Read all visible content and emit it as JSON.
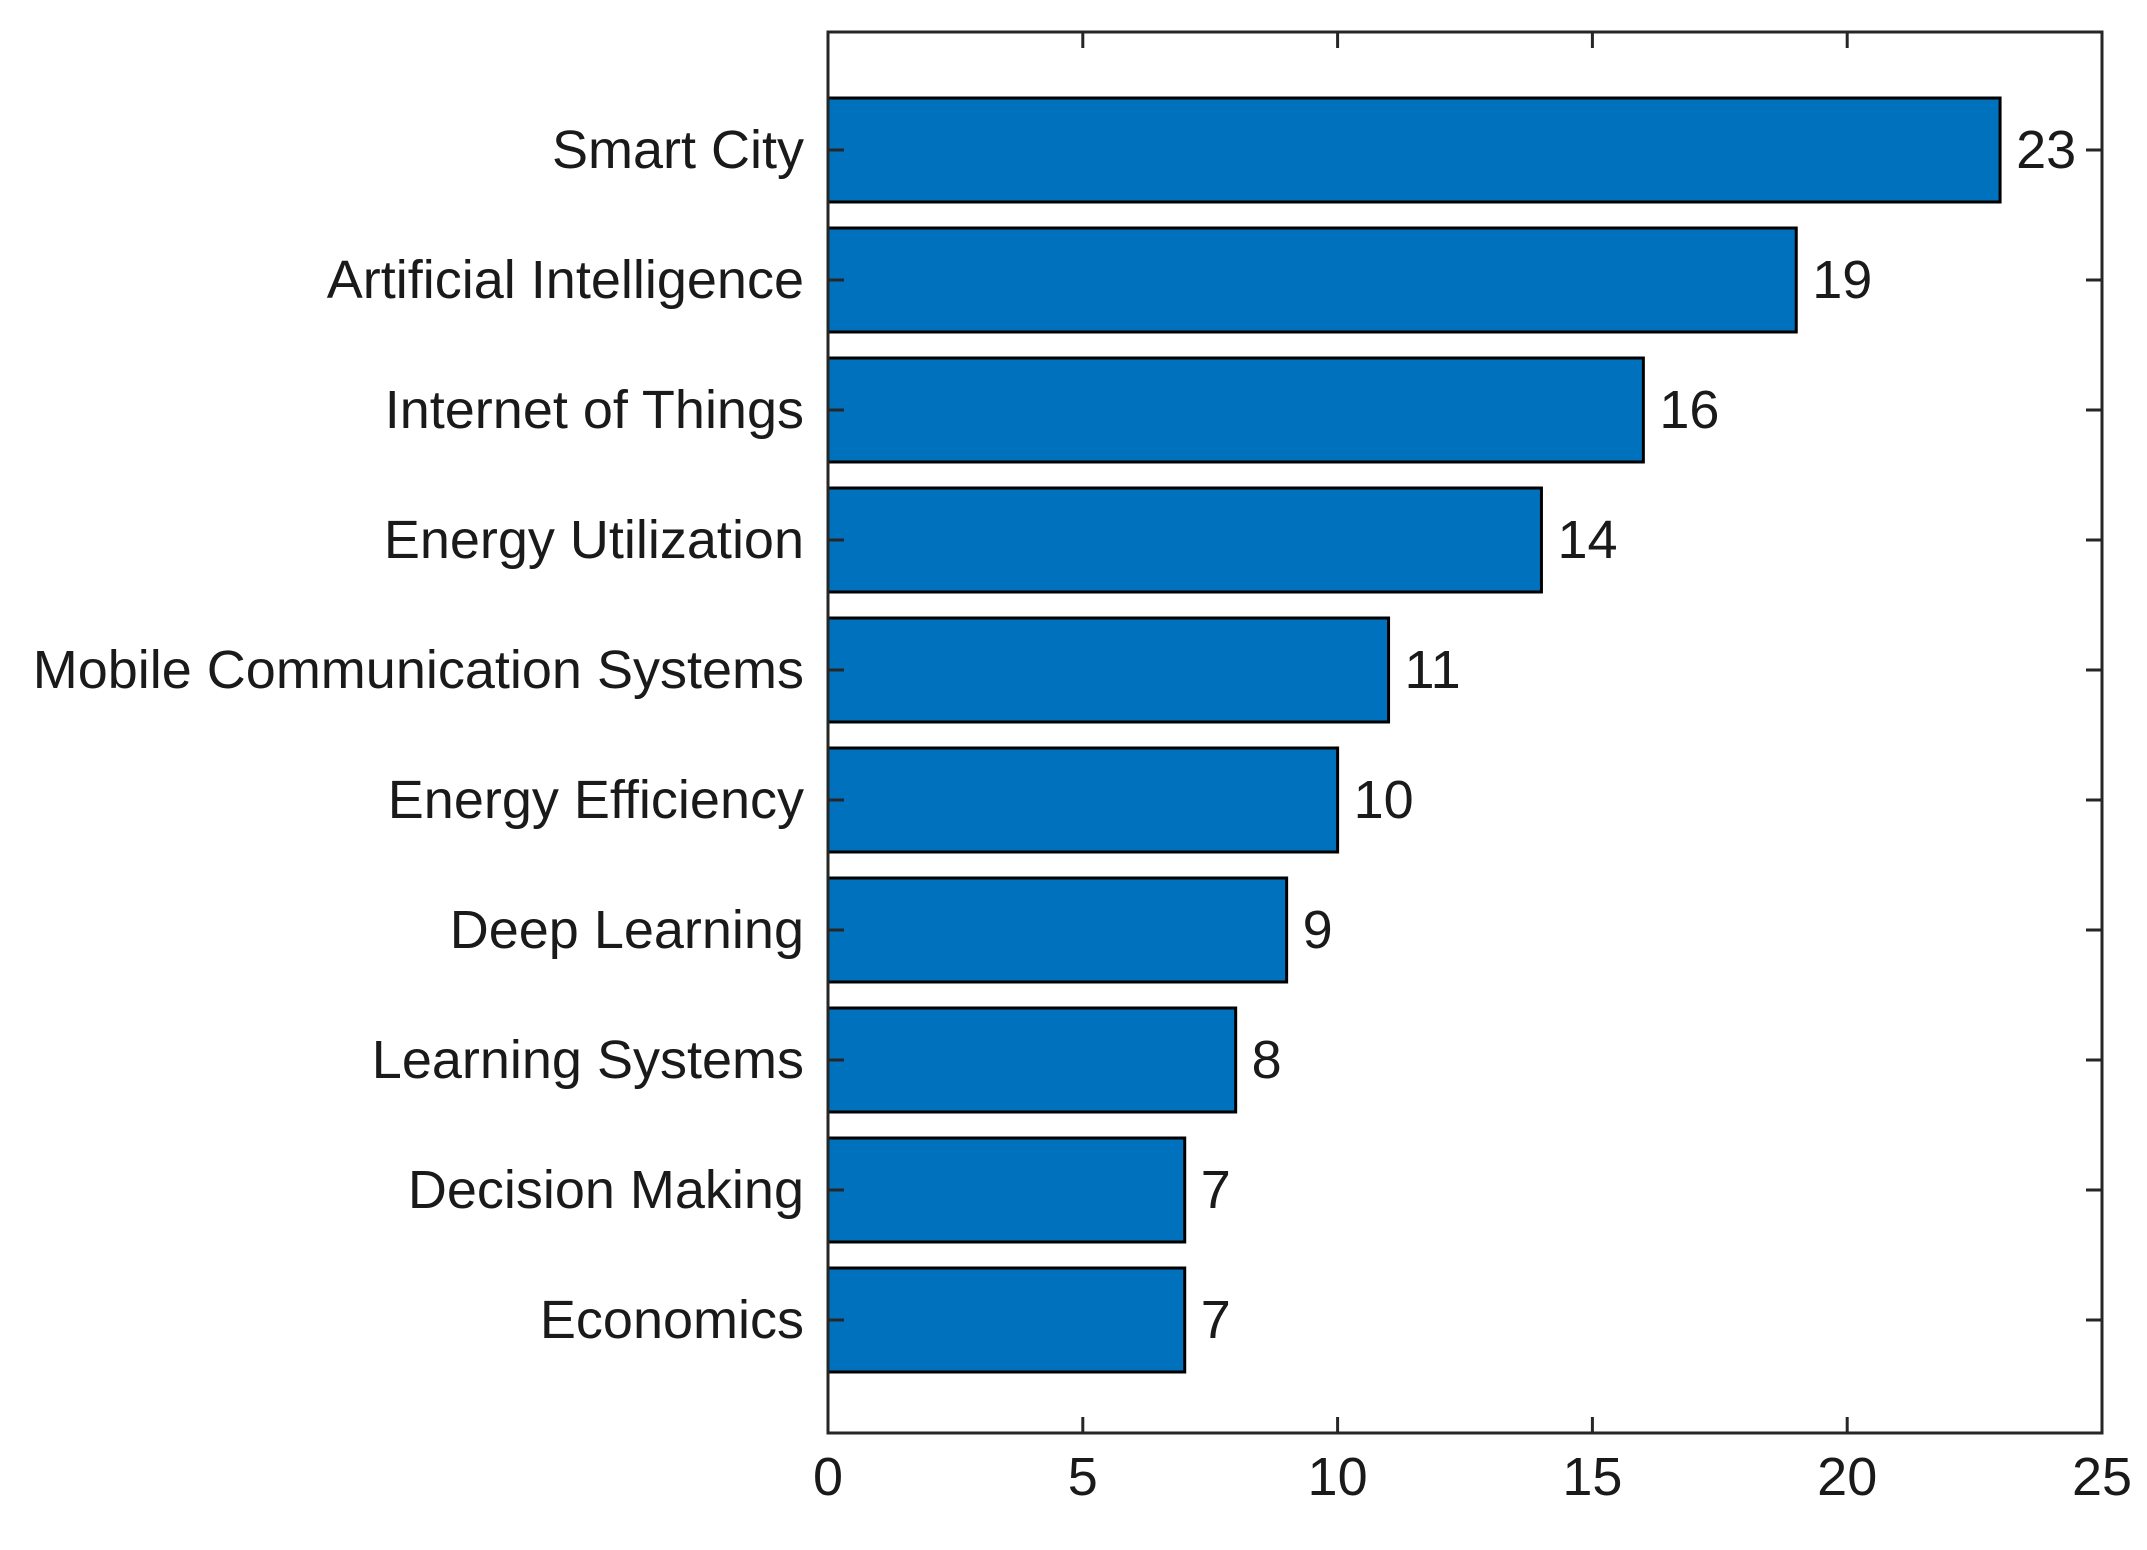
{
  "chart_data": {
    "type": "bar",
    "orientation": "horizontal",
    "categories": [
      "Smart City",
      "Artificial Intelligence",
      "Internet of Things",
      "Energy Utilization",
      "Mobile Communication Systems",
      "Energy Efficiency",
      "Deep Learning",
      "Learning Systems",
      "Decision Making",
      "Economics"
    ],
    "values": [
      23,
      19,
      16,
      14,
      11,
      10,
      9,
      8,
      7,
      7
    ],
    "data_labels": [
      "23",
      "19",
      "16",
      "14",
      "11",
      "10",
      "9",
      "8",
      "7",
      "7"
    ],
    "xlim": [
      0,
      25
    ],
    "xticks": [
      0,
      5,
      10,
      15,
      20,
      25
    ],
    "xtick_labels": [
      "0",
      "5",
      "10",
      "15",
      "20",
      "25"
    ],
    "title": "",
    "xlabel": "",
    "ylabel": "",
    "grid": false,
    "bar_color": "#0072BD",
    "edge_color": "#000000"
  }
}
